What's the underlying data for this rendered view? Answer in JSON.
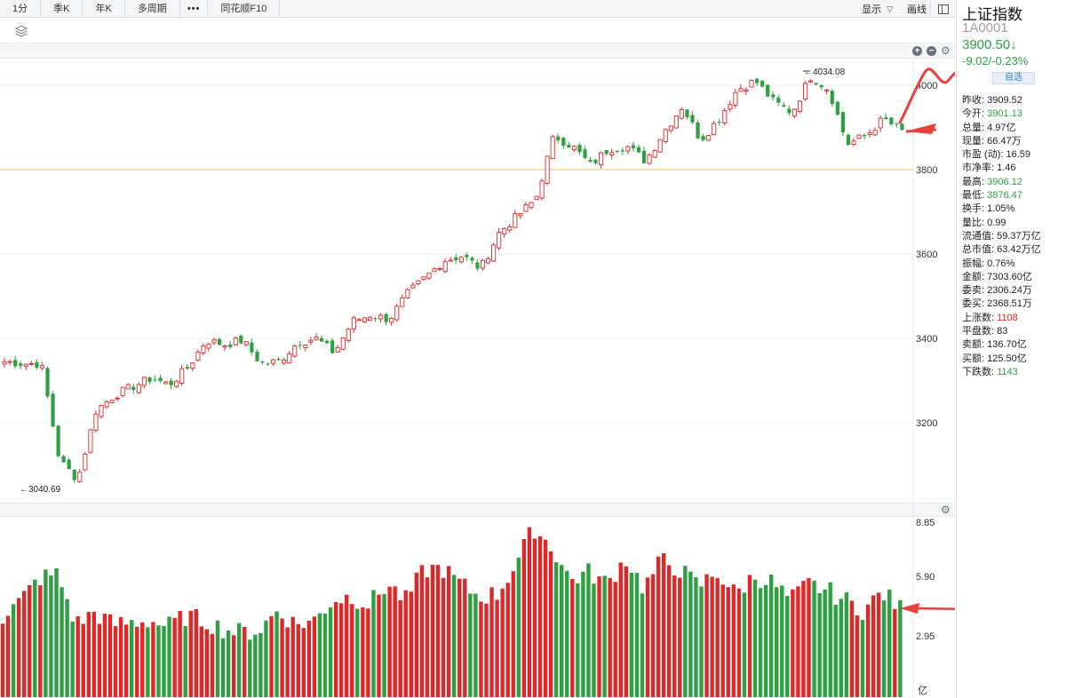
{
  "toolbar": {
    "tabs": [
      "1分",
      "季K",
      "年K",
      "多周期",
      "•••",
      "同花顺F10"
    ],
    "display_label": "显示",
    "draw_label": "画线"
  },
  "info_panel": {
    "name": "上证指数",
    "code": "1A0001",
    "price": "3900.50↓",
    "change": "-9.02/-0.23%",
    "watch_label": "自选",
    "stats": [
      {
        "label": "昨收:",
        "value": "3909.52",
        "tone": "normal"
      },
      {
        "label": "今开:",
        "value": "3901.13",
        "tone": "down"
      },
      {
        "label": "总量:",
        "value": "4.97亿",
        "tone": "normal"
      },
      {
        "label": "现量:",
        "value": "66.47万",
        "tone": "normal"
      },
      {
        "label": "市盈 (动):",
        "value": "16.59",
        "tone": "normal"
      },
      {
        "label": "市净率:",
        "value": "1.46",
        "tone": "normal"
      },
      {
        "label": "最高:",
        "value": "3906.12",
        "tone": "down"
      },
      {
        "label": "最低:",
        "value": "3876.47",
        "tone": "down"
      },
      {
        "label": "换手:",
        "value": "1.05%",
        "tone": "normal"
      },
      {
        "label": "量比:",
        "value": "0.99",
        "tone": "normal"
      },
      {
        "label": "流通值:",
        "value": "59.37万亿",
        "tone": "normal"
      },
      {
        "label": "总市值:",
        "value": "63.42万亿",
        "tone": "normal"
      },
      {
        "label": "振幅:",
        "value": "0.76%",
        "tone": "normal"
      },
      {
        "label": "金额:",
        "value": "7303.60亿",
        "tone": "normal"
      },
      {
        "label": "委卖:",
        "value": "2306.24万",
        "tone": "normal"
      },
      {
        "label": "委买:",
        "value": "2368.51万",
        "tone": "normal"
      },
      {
        "label": "上涨数:",
        "value": "1108",
        "tone": "up"
      },
      {
        "label": "平盘数:",
        "value": "83",
        "tone": "normal"
      },
      {
        "label": "卖额:",
        "value": "136.70亿",
        "tone": "normal"
      },
      {
        "label": "买额:",
        "value": "125.50亿",
        "tone": "normal"
      },
      {
        "label": "下跌数:",
        "value": "1143",
        "tone": "down"
      }
    ]
  },
  "chart_data": [
    {
      "type": "candlestick",
      "y_ticks": [
        "4000",
        "3800",
        "3600",
        "3400",
        "3200"
      ],
      "ylim": [
        3040,
        4060
      ],
      "reference_line": 3800,
      "high_label": "4034.08",
      "low_label": "3040.69",
      "colors": {
        "up": "#e02727",
        "down": "#2ea043",
        "reference": "#f2c14e",
        "annotation": "#e8403a"
      },
      "anchors": [
        3345,
        3340,
        3340,
        3110,
        3065,
        3230,
        3265,
        3285,
        3305,
        3290,
        3330,
        3395,
        3385,
        3395,
        3340,
        3345,
        3390,
        3400,
        3365,
        3440,
        3455,
        3445,
        3505,
        3545,
        3585,
        3595,
        3565,
        3650,
        3690,
        3730,
        3880,
        3855,
        3810,
        3850,
        3855,
        3820,
        3890,
        3950,
        3870,
        3920,
        3990,
        4010,
        3960,
        3935,
        4020,
        3990,
        3860,
        3880,
        3920,
        3890
      ]
    },
    {
      "type": "bar",
      "series": "volume",
      "y_ticks": [
        "8.85",
        "5.90",
        "2.95"
      ],
      "unit": "亿",
      "ylim": [
        0,
        8.85
      ],
      "anchors": [
        4.0,
        4.8,
        5.9,
        6.1,
        3.6,
        4.2,
        3.6,
        3.7,
        3.8,
        3.5,
        4.0,
        3.8,
        3.4,
        3.2,
        3.3,
        4.3,
        3.6,
        3.8,
        4.8,
        5.0,
        4.6,
        5.6,
        4.8,
        6.3,
        6.4,
        5.6,
        5.0,
        5.1,
        6.6,
        8.4,
        7.4,
        5.8,
        6.2,
        5.6,
        6.9,
        5.4,
        6.8,
        6.3,
        5.5,
        6.2,
        5.1,
        6.0,
        5.7,
        4.8,
        5.6,
        5.3,
        4.8,
        4.3,
        5.2,
        4.4
      ]
    }
  ]
}
